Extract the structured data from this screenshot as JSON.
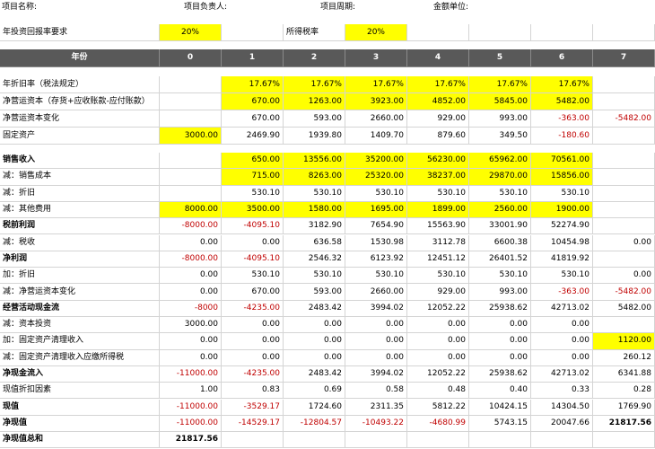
{
  "header": {
    "fields": [
      "项目名称:",
      "项目负责人:",
      "项目周期:",
      "金额单位:"
    ]
  },
  "params": {
    "return_label": "年投资回报率要求",
    "return_value": "20%",
    "tax_label": "所得税率",
    "tax_value": "20%"
  },
  "table": {
    "columns": [
      "年份",
      "0",
      "1",
      "2",
      "3",
      "4",
      "5",
      "6",
      "7"
    ],
    "rows": [
      {
        "label": "年折旧率（税法规定）",
        "cells": [
          null,
          "17.67%",
          "17.67%",
          "17.67%",
          "17.67%",
          "17.67%",
          "17.67%",
          null
        ]
      },
      {
        "label": "净营运资本（存货+应收账款-应付账款）",
        "cells": [
          null,
          "670.00",
          "1263.00",
          "3923.00",
          "4852.00",
          "5845.00",
          "5482.00",
          null
        ]
      },
      {
        "label": "净营运资本变化",
        "cells": [
          null,
          "670.00",
          "593.00",
          "2660.00",
          "929.00",
          "993.00",
          "-363.00",
          "-5482.00"
        ]
      },
      {
        "label": "固定资产",
        "cells": [
          "3000.00",
          "2469.90",
          "1939.80",
          "1409.70",
          "879.60",
          "349.50",
          "-180.60",
          null
        ]
      },
      {
        "label": "销售收入",
        "cells": [
          null,
          "650.00",
          "13556.00",
          "35200.00",
          "56230.00",
          "65962.00",
          "70561.00",
          null
        ]
      },
      {
        "label": "减：销售成本",
        "cells": [
          null,
          "715.00",
          "8263.00",
          "25320.00",
          "38237.00",
          "29870.00",
          "15856.00",
          null
        ]
      },
      {
        "label": "减：折旧",
        "cells": [
          null,
          "530.10",
          "530.10",
          "530.10",
          "530.10",
          "530.10",
          "530.10",
          null
        ]
      },
      {
        "label": "减：其他费用",
        "cells": [
          "8000.00",
          "3500.00",
          "1580.00",
          "1695.00",
          "1899.00",
          "2560.00",
          "1900.00",
          null
        ]
      },
      {
        "label": "税前利润",
        "cells": [
          "-8000.00",
          "-4095.10",
          "3182.90",
          "7654.90",
          "15563.90",
          "33001.90",
          "52274.90",
          null
        ]
      },
      {
        "label": "减：税收",
        "cells": [
          "0.00",
          "0.00",
          "636.58",
          "1530.98",
          "3112.78",
          "6600.38",
          "10454.98",
          "0.00"
        ]
      },
      {
        "label": "净利润",
        "cells": [
          "-8000.00",
          "-4095.10",
          "2546.32",
          "6123.92",
          "12451.12",
          "26401.52",
          "41819.92",
          null
        ]
      },
      {
        "label": "加：折旧",
        "cells": [
          "0.00",
          "530.10",
          "530.10",
          "530.10",
          "530.10",
          "530.10",
          "530.10",
          "0.00"
        ]
      },
      {
        "label": "减：净营运资本变化",
        "cells": [
          "0.00",
          "670.00",
          "593.00",
          "2660.00",
          "929.00",
          "993.00",
          "-363.00",
          "-5482.00"
        ]
      },
      {
        "label": "经营活动现金流",
        "cells": [
          "-8000",
          "-4235.00",
          "2483.42",
          "3994.02",
          "12052.22",
          "25938.62",
          "42713.02",
          "5482.00"
        ]
      },
      {
        "label": "减：资本投资",
        "cells": [
          "3000.00",
          "0.00",
          "0.00",
          "0.00",
          "0.00",
          "0.00",
          "0.00",
          null
        ]
      },
      {
        "label": "加：固定资产清理收入",
        "cells": [
          "0.00",
          "0.00",
          "0.00",
          "0.00",
          "0.00",
          "0.00",
          "0.00",
          "1120.00"
        ]
      },
      {
        "label": "减：固定资产清理收入应缴所得税",
        "cells": [
          "0.00",
          "0.00",
          "0.00",
          "0.00",
          "0.00",
          "0.00",
          "0.00",
          "260.12"
        ]
      },
      {
        "label": "净现金流入",
        "cells": [
          "-11000.00",
          "-4235.00",
          "2483.42",
          "3994.02",
          "12052.22",
          "25938.62",
          "42713.02",
          "6341.88"
        ]
      },
      {
        "label": "现值折扣因素",
        "cells": [
          "1.00",
          "0.83",
          "0.69",
          "0.58",
          "0.48",
          "0.40",
          "0.33",
          "0.28"
        ]
      },
      {
        "label": "现值",
        "cells": [
          "-11000.00",
          "-3529.17",
          "1724.60",
          "2311.35",
          "5812.22",
          "10424.15",
          "14304.50",
          "1769.90"
        ]
      },
      {
        "label": "净现值",
        "cells": [
          "-11000.00",
          "-14529.17",
          "-12804.57",
          "-10493.22",
          "-4680.99",
          "5743.15",
          "20047.66",
          "21817.56"
        ]
      },
      {
        "label": "净现值总和",
        "cells": [
          "21817.56",
          null,
          null,
          null,
          null,
          null,
          null,
          null
        ]
      }
    ]
  }
}
